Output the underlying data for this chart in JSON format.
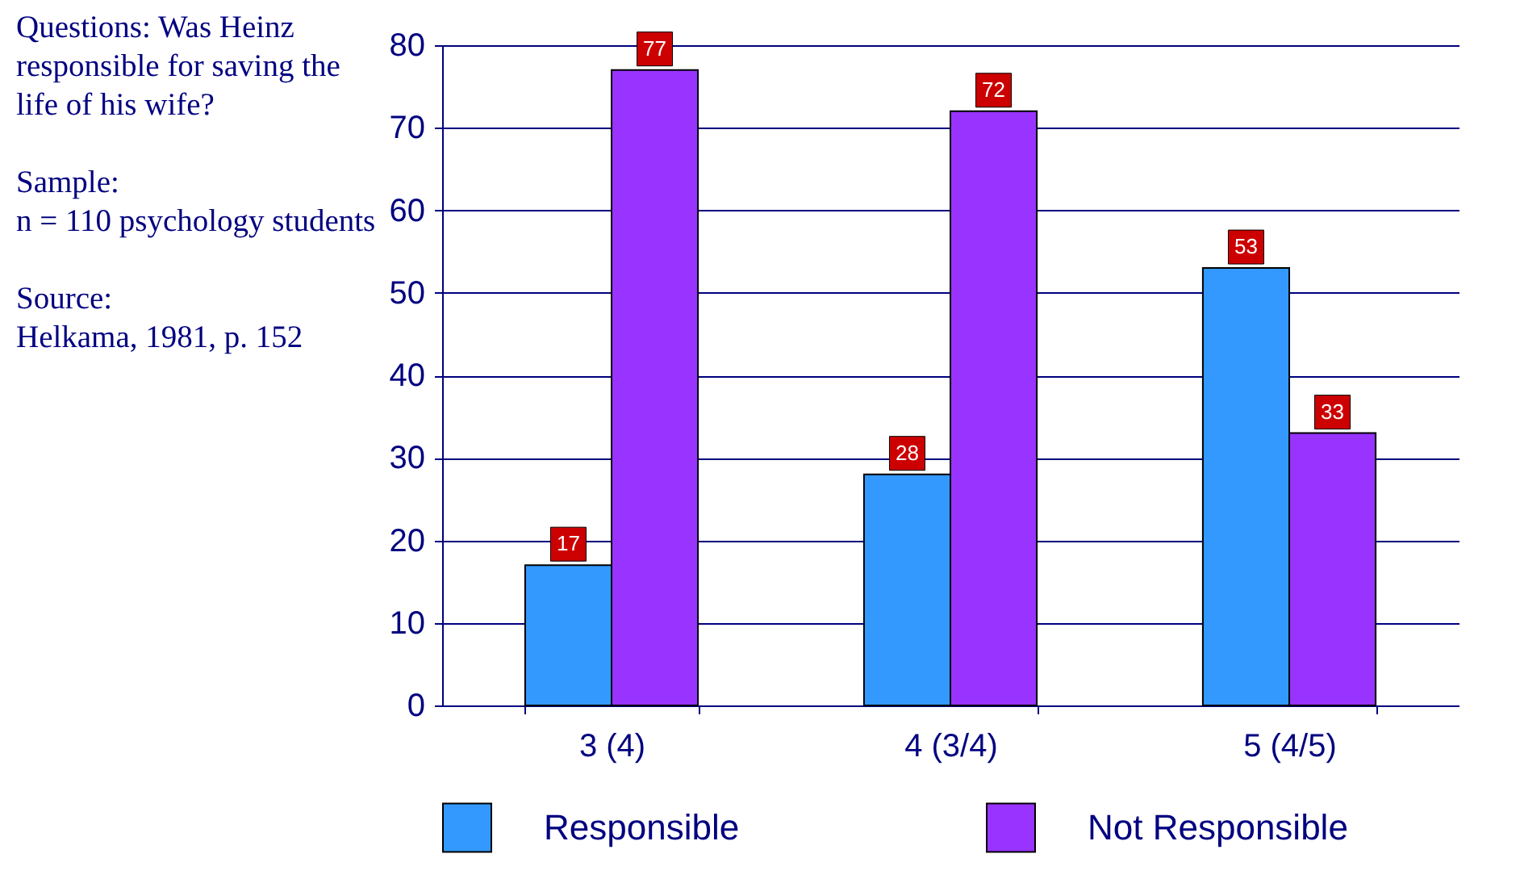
{
  "chart_data": {
    "type": "bar",
    "categories": [
      "3 (4)",
      "4 (3/4)",
      "5 (4/5)"
    ],
    "series": [
      {
        "name": "Responsible",
        "color": "#3399ff",
        "values": [
          17,
          28,
          53
        ]
      },
      {
        "name": "Not Responsible",
        "color": "#9933ff",
        "values": [
          77,
          72,
          33
        ]
      }
    ],
    "ylim": [
      0,
      80
    ],
    "yticks": [
      0,
      10,
      20,
      30,
      40,
      50,
      60,
      70,
      80
    ],
    "grid": "y",
    "legend": "bottom",
    "data_labels": true,
    "annotations": [
      "Questions: Was Heinz responsible for saving the life of his wife?",
      "Sample:\nn = 110 psychology students",
      "Source:\nHelkama, 1981, p. 152"
    ]
  }
}
